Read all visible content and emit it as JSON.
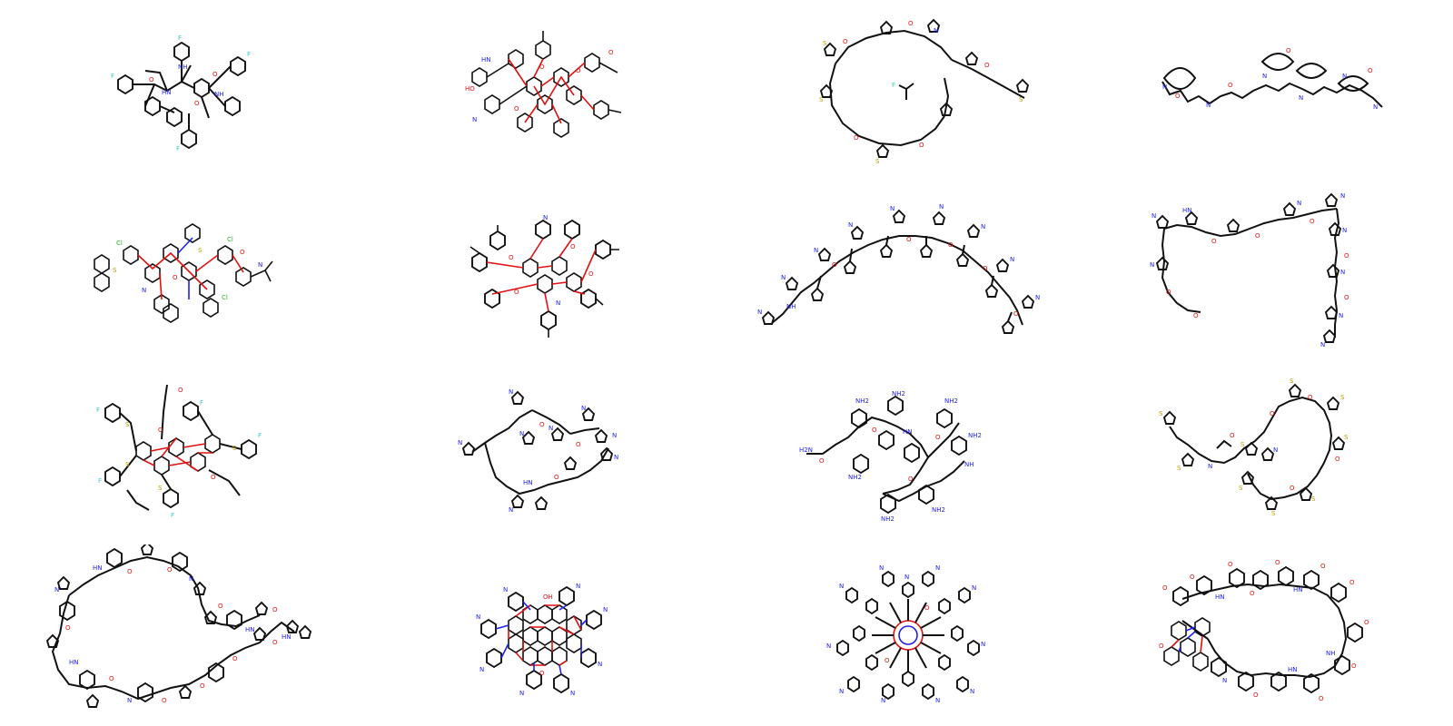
{
  "grid": {
    "rows": 4,
    "cols": 4,
    "background": "#ffffff"
  },
  "atom_colors": {
    "carbon": "#111111",
    "oxygen": "#e01010",
    "nitrogen": "#2020ee",
    "sulfur": "#b8a000",
    "fluorine": "#33cccc",
    "chlorine": "#22bb22"
  },
  "labels": {
    "O": "O",
    "N": "N",
    "NH": "NH",
    "HN": "HN",
    "NH2": "NH2",
    "H2N": "H2N",
    "S": "S",
    "F": "F",
    "Cl": "Cl",
    "OH": "OH",
    "HO": "HO"
  },
  "molecules": [
    {
      "row": 0,
      "col": 0,
      "style": "fluoro-aryl-amide cluster"
    },
    {
      "row": 0,
      "col": 1,
      "style": "dense aryl ester cluster"
    },
    {
      "row": 0,
      "col": 2,
      "style": "thiazole ester macrocycle"
    },
    {
      "row": 0,
      "col": 3,
      "style": "diazepane chain"
    },
    {
      "row": 1,
      "col": 0,
      "style": "chloro-aryl thioether cluster"
    },
    {
      "row": 1,
      "col": 1,
      "style": "tolyl ester cluster"
    },
    {
      "row": 1,
      "col": 2,
      "style": "pyrazole cyclopentyl chain"
    },
    {
      "row": 1,
      "col": 3,
      "style": "pyrazole ester chain"
    },
    {
      "row": 2,
      "col": 0,
      "style": "fluoro-aryl thioether ester"
    },
    {
      "row": 2,
      "col": 1,
      "style": "pyrazole amide chain"
    },
    {
      "row": 2,
      "col": 2,
      "style": "amino-aryl amide chain"
    },
    {
      "row": 2,
      "col": 3,
      "style": "thiazole ester chain"
    },
    {
      "row": 3,
      "col": 0,
      "style": "proline-aryl amide macrocycle"
    },
    {
      "row": 3,
      "col": 1,
      "style": "pyrimidine dense cluster"
    },
    {
      "row": 3,
      "col": 2,
      "style": "pyrimidine radial cluster"
    },
    {
      "row": 3,
      "col": 3,
      "style": "methoxy-aryl amide macrocycle"
    }
  ]
}
